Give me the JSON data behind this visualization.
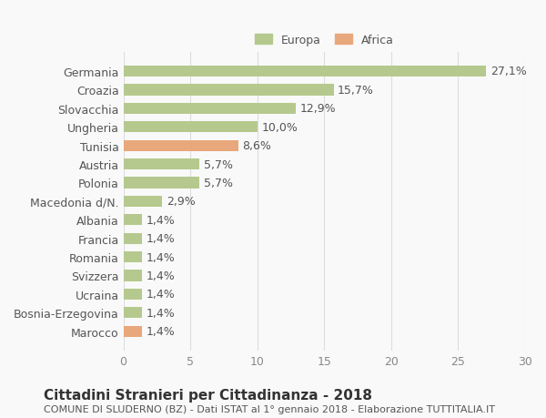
{
  "categories": [
    "Germania",
    "Croazia",
    "Slovacchia",
    "Ungheria",
    "Tunisia",
    "Austria",
    "Polonia",
    "Macedonia d/N.",
    "Albania",
    "Francia",
    "Romania",
    "Svizzera",
    "Ucraina",
    "Bosnia-Erzegovina",
    "Marocco"
  ],
  "values": [
    27.1,
    15.7,
    12.9,
    10.0,
    8.6,
    5.7,
    5.7,
    2.9,
    1.4,
    1.4,
    1.4,
    1.4,
    1.4,
    1.4,
    1.4
  ],
  "labels": [
    "27,1%",
    "15,7%",
    "12,9%",
    "10,0%",
    "8,6%",
    "5,7%",
    "5,7%",
    "2,9%",
    "1,4%",
    "1,4%",
    "1,4%",
    "1,4%",
    "1,4%",
    "1,4%",
    "1,4%"
  ],
  "continents": [
    "Europa",
    "Europa",
    "Europa",
    "Europa",
    "Africa",
    "Europa",
    "Europa",
    "Europa",
    "Europa",
    "Europa",
    "Europa",
    "Europa",
    "Europa",
    "Europa",
    "Africa"
  ],
  "color_europa": "#b5c98e",
  "color_africa": "#e8a87c",
  "legend_europa": "Europa",
  "legend_africa": "Africa",
  "xlim": [
    0,
    30
  ],
  "xticks": [
    0,
    5,
    10,
    15,
    20,
    25,
    30
  ],
  "title": "Cittadini Stranieri per Cittadinanza - 2018",
  "subtitle": "COMUNE DI SLUDERNO (BZ) - Dati ISTAT al 1° gennaio 2018 - Elaborazione TUTTITALIA.IT",
  "background_color": "#f9f9f9",
  "bar_height": 0.6,
  "label_fontsize": 9,
  "tick_fontsize": 9,
  "title_fontsize": 11,
  "subtitle_fontsize": 8
}
